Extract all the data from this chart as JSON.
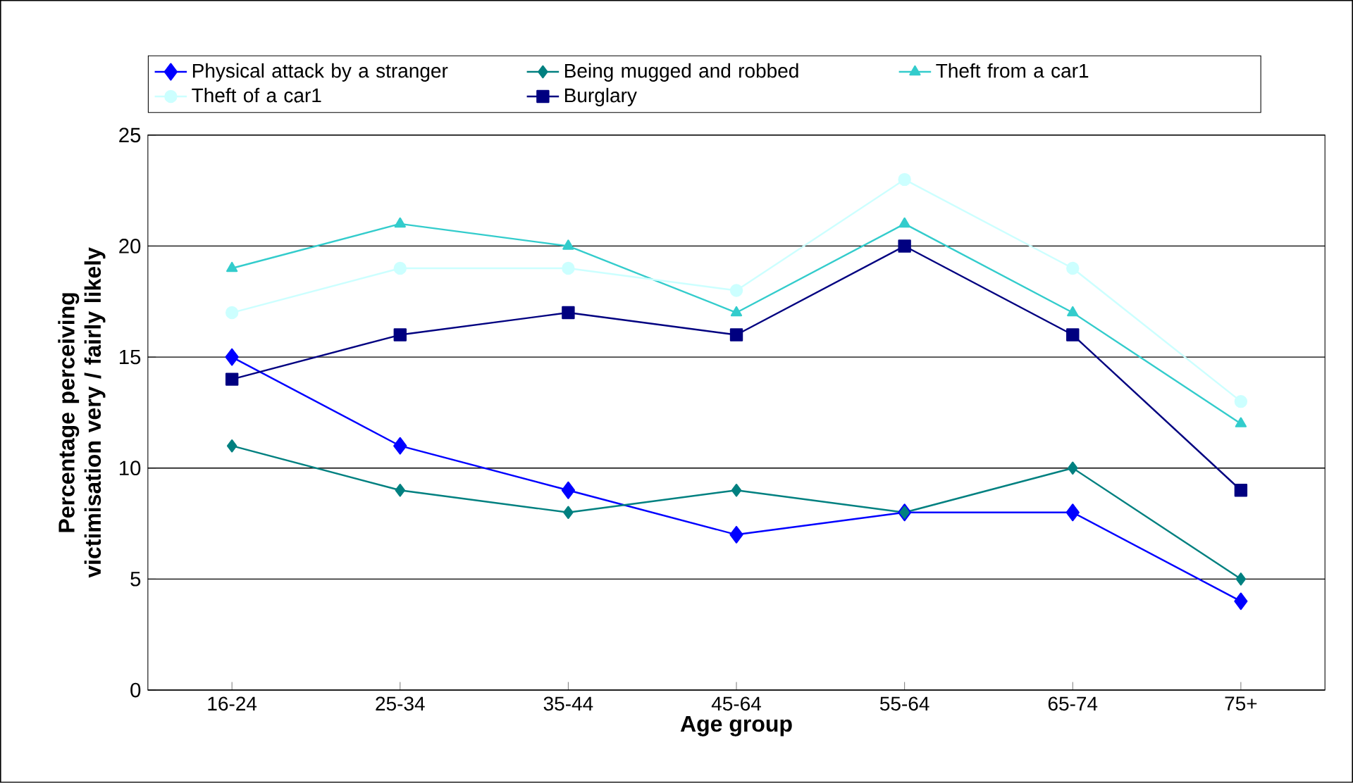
{
  "chart_data": {
    "type": "line",
    "xlabel": "Age group",
    "ylabel": "Percentage perceiving victimisation very / fairly likely",
    "categories": [
      "16-24",
      "25-34",
      "35-44",
      "45-64",
      "55-64",
      "65-74",
      "75+"
    ],
    "series": [
      {
        "name": "Physical attack by a stranger",
        "color": "#0000ff",
        "marker": "diamond",
        "values": [
          15,
          11,
          9,
          7,
          8,
          8,
          4
        ]
      },
      {
        "name": "Being mugged and robbed",
        "color": "#008080",
        "marker": "diamond",
        "values": [
          11,
          9,
          8,
          9,
          8,
          10,
          5
        ]
      },
      {
        "name": "Theft from a car1",
        "color": "#33cccc",
        "marker": "triangle",
        "values": [
          19,
          21,
          20,
          17,
          21,
          17,
          12
        ]
      },
      {
        "name": "Theft of a car1",
        "color": "#ccffff",
        "marker": "circle",
        "values": [
          17,
          19,
          19,
          18,
          23,
          19,
          13
        ]
      },
      {
        "name": "Burglary",
        "color": "#000080",
        "marker": "square",
        "values": [
          14,
          16,
          17,
          16,
          20,
          16,
          9
        ]
      }
    ],
    "ylim": [
      0,
      25
    ],
    "yticks": [
      0,
      5,
      10,
      15,
      20,
      25
    ],
    "grid": "y",
    "legend": "top",
    "line_style": "solid"
  }
}
